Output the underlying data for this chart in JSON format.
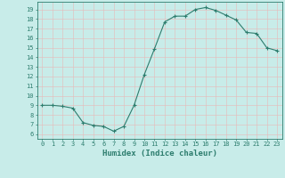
{
  "x": [
    0,
    1,
    2,
    3,
    4,
    5,
    6,
    7,
    8,
    9,
    10,
    11,
    12,
    13,
    14,
    15,
    16,
    17,
    18,
    19,
    20,
    21,
    22,
    23
  ],
  "y": [
    9.0,
    9.0,
    8.9,
    8.7,
    7.2,
    6.9,
    6.8,
    6.3,
    6.8,
    9.0,
    12.2,
    14.9,
    17.7,
    18.3,
    18.3,
    19.0,
    19.2,
    18.9,
    18.4,
    17.9,
    16.6,
    16.5,
    15.0,
    14.7
  ],
  "line_color": "#2d7d6e",
  "marker": "+",
  "marker_size": 3,
  "bg_color": "#c8ece9",
  "grid_color": "#e8b8b8",
  "tick_color": "#2d7d6e",
  "xlabel": "Humidex (Indice chaleur)",
  "xlabel_fontsize": 6.5,
  "ylabel_ticks": [
    6,
    7,
    8,
    9,
    10,
    11,
    12,
    13,
    14,
    15,
    16,
    17,
    18,
    19
  ],
  "xlim": [
    -0.5,
    23.5
  ],
  "ylim": [
    5.5,
    19.8
  ],
  "font_color": "#2d7d6e",
  "tick_fontsize": 5.0,
  "linewidth": 0.8,
  "markeredgewidth": 0.8
}
